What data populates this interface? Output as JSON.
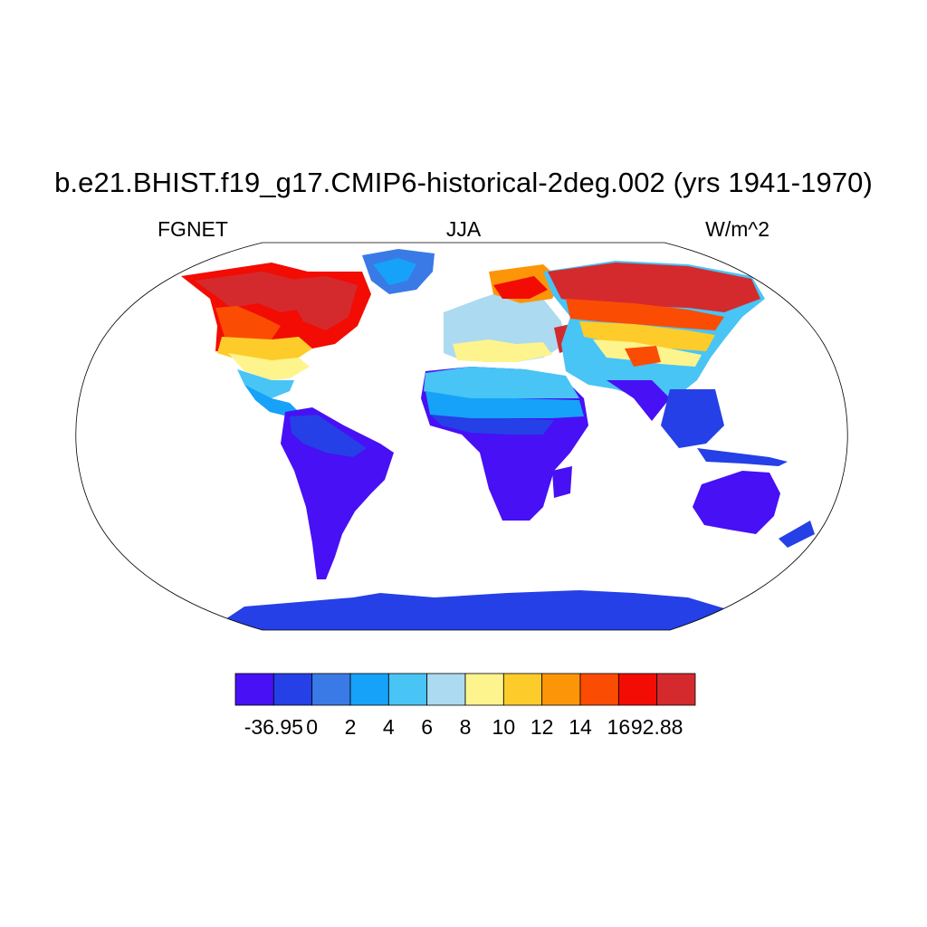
{
  "map": {
    "title": "b.e21.BHIST.f19_g17.CMIP6-historical-2deg.002 (yrs 1941-1970)",
    "variable": "FGNET",
    "season": "JJA",
    "units": "W/m^2",
    "projection": "Robinson",
    "coastlines": true
  },
  "colorbar": {
    "colors": [
      "#4710f5",
      "#2540e6",
      "#3a7ae6",
      "#16a2f8",
      "#48c4f5",
      "#acdaf0",
      "#fdf48d",
      "#fdcc2a",
      "#fc9608",
      "#fb4c04",
      "#f20c04",
      "#d42a2e"
    ],
    "labels": [
      "-36.95",
      "0",
      "2",
      "4",
      "6",
      "8",
      "10",
      "12",
      "14",
      "16",
      "92.88"
    ]
  },
  "icons": {
    "coastline": "coastline-outline",
    "land_fill": "gridded-field"
  }
}
